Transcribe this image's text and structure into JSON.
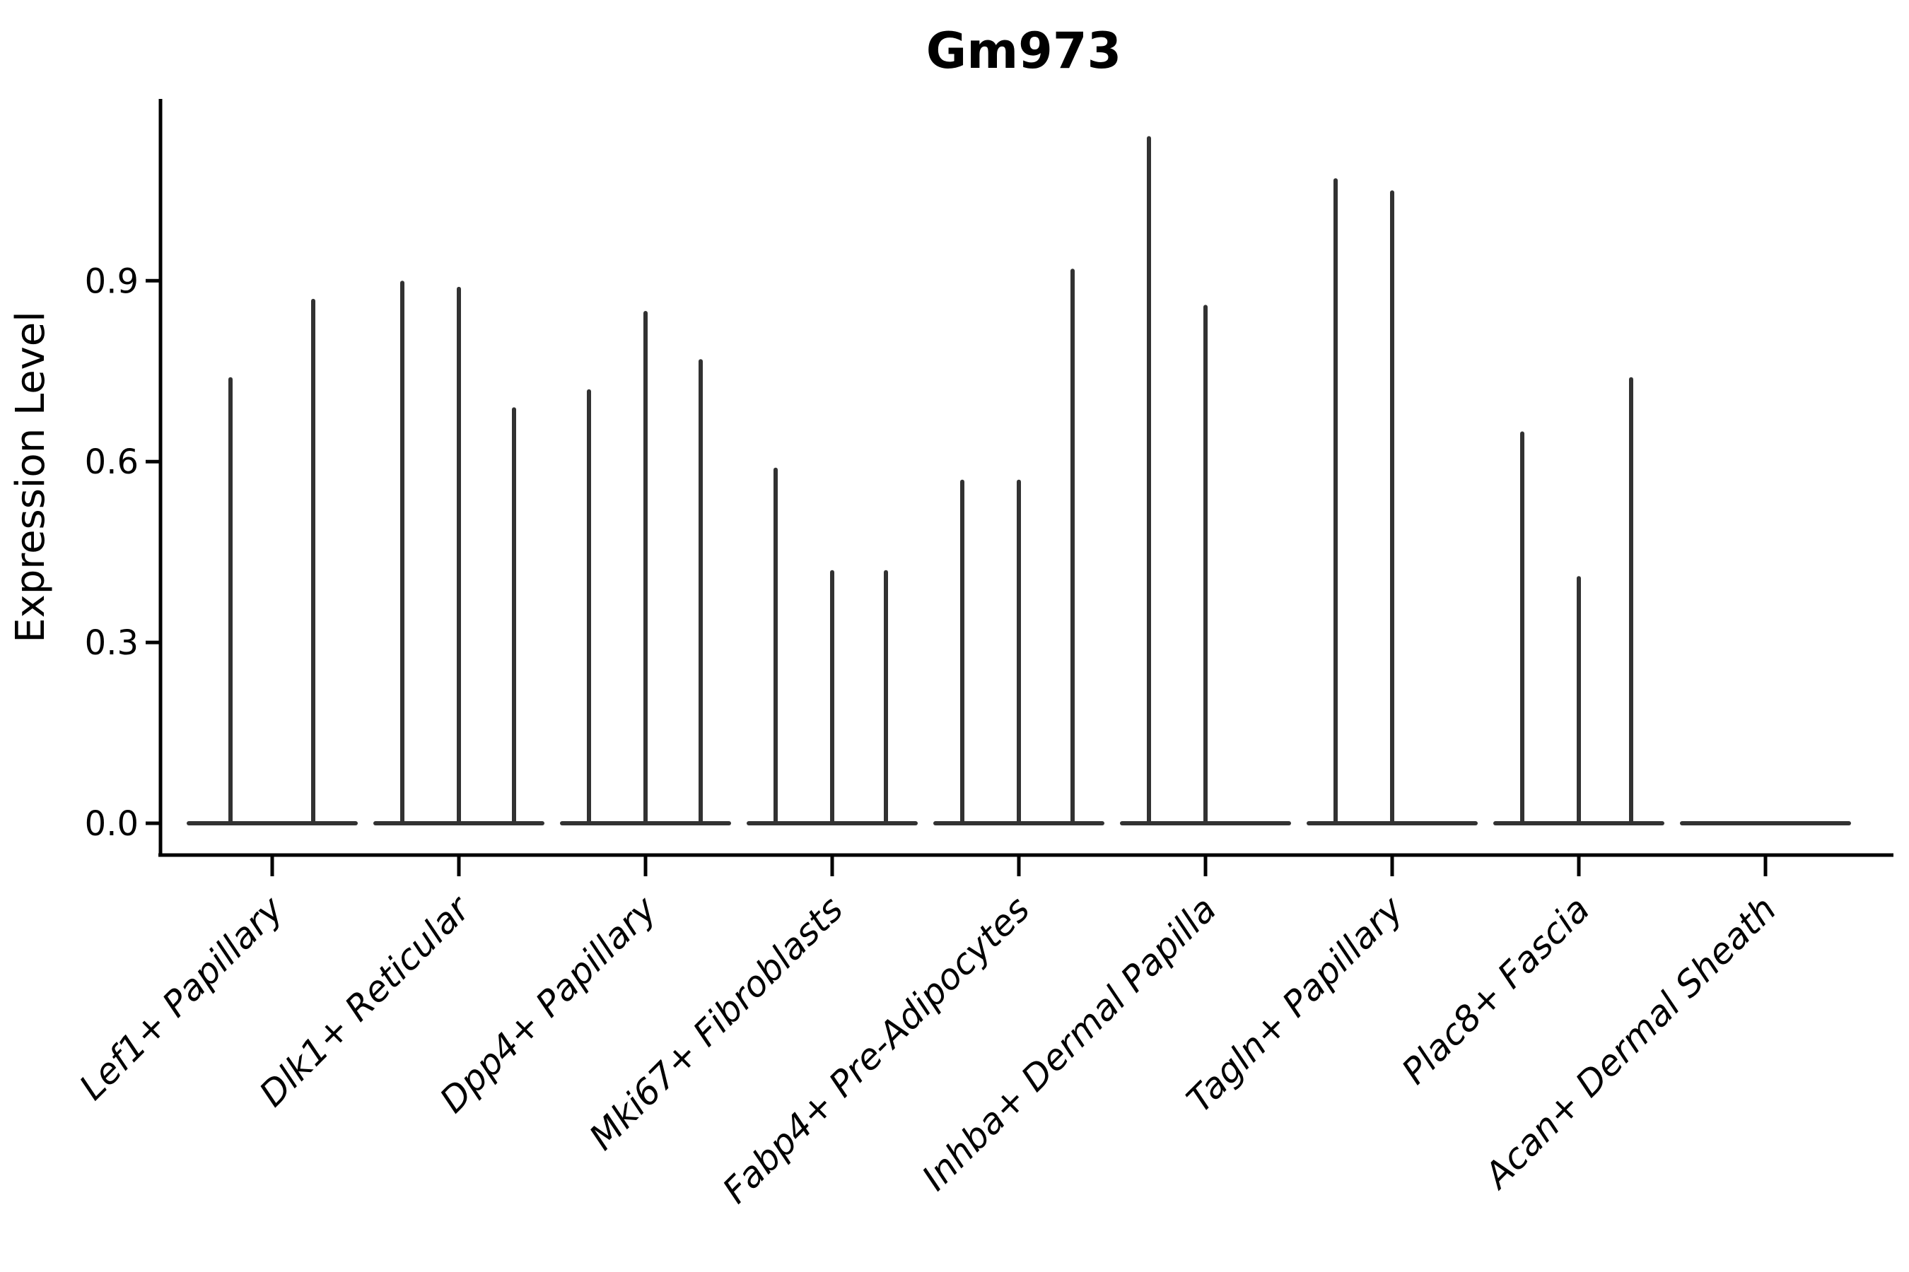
{
  "figure": {
    "title": "Gm973",
    "background_color": "#ffffff",
    "axis_color": "#000000",
    "violin_color": "#323232"
  },
  "chart_data": {
    "type": "violin",
    "title": "Gm973",
    "xlabel": "",
    "ylabel": "Expression Level",
    "ylim": [
      -0.05,
      1.2
    ],
    "yticks": [
      0.0,
      0.3,
      0.6,
      0.9
    ],
    "ytick_labels": [
      "0.0",
      "0.3",
      "0.6",
      "0.9"
    ],
    "grid": false,
    "legend": "none",
    "xtick_rotation_deg": 45,
    "categories": [
      "Lef1+ Papillary",
      "Dlk1+ Reticular",
      "Dpp4+ Papillary",
      "Mki67+ Fibroblasts",
      "Fabp4+ Pre-Adipocytes",
      "Inhba+ Dermal Papilla",
      "Tagln+ Papillary",
      "Plac8+ Fascia",
      "Acan+ Dermal Sheath"
    ],
    "series": [
      {
        "category": "Lef1+ Papillary",
        "spikes": [
          {
            "dx": -59,
            "value": 0.74
          },
          {
            "dx": 58,
            "value": 0.87
          }
        ]
      },
      {
        "category": "Dlk1+ Reticular",
        "spikes": [
          {
            "dx": -80,
            "value": 0.9
          },
          {
            "dx": 0,
            "value": 0.89
          },
          {
            "dx": 78,
            "value": 0.69
          }
        ]
      },
      {
        "category": "Dpp4+ Papillary",
        "spikes": [
          {
            "dx": -80,
            "value": 0.72
          },
          {
            "dx": 0,
            "value": 0.85
          },
          {
            "dx": 78,
            "value": 0.77
          }
        ]
      },
      {
        "category": "Mki67+ Fibroblasts",
        "spikes": [
          {
            "dx": -80,
            "value": 0.59
          },
          {
            "dx": 0,
            "value": 0.42
          },
          {
            "dx": 76,
            "value": 0.42
          }
        ]
      },
      {
        "category": "Fabp4+ Pre-Adipocytes",
        "spikes": [
          {
            "dx": -80,
            "value": 0.57
          },
          {
            "dx": 0,
            "value": 0.57
          },
          {
            "dx": 76,
            "value": 0.92
          }
        ]
      },
      {
        "category": "Inhba+ Dermal Papilla",
        "spikes": [
          {
            "dx": -80,
            "value": 1.14
          },
          {
            "dx": 0,
            "value": 0.86
          }
        ]
      },
      {
        "category": "Tagln+ Papillary",
        "spikes": [
          {
            "dx": -80,
            "value": 1.07
          },
          {
            "dx": 0,
            "value": 1.05
          }
        ]
      },
      {
        "category": "Plac8+ Fascia",
        "spikes": [
          {
            "dx": -80,
            "value": 0.65
          },
          {
            "dx": 0,
            "value": 0.41
          },
          {
            "dx": 74,
            "value": 0.74
          }
        ]
      },
      {
        "category": "Acan+ Dermal Sheath",
        "spikes": []
      }
    ]
  }
}
